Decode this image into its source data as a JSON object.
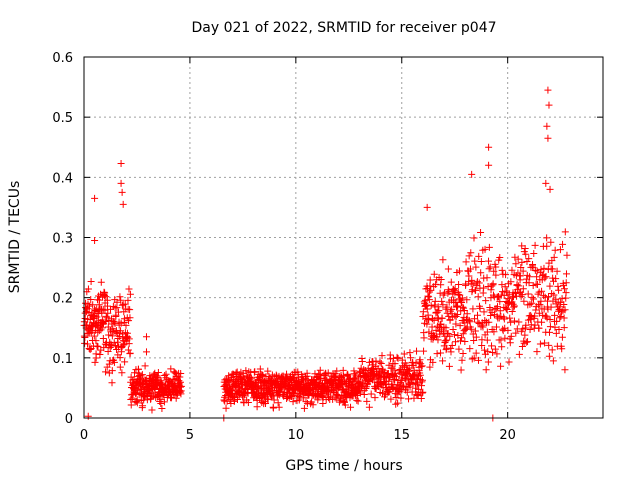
{
  "chart_data": {
    "type": "scatter",
    "title": "Day 021 of 2022, SRMTID for receiver p047",
    "xlabel": "GPS time / hours",
    "ylabel": "SRMTID / TECUs",
    "xlim": [
      0,
      24.5
    ],
    "ylim": [
      0,
      0.6
    ],
    "x_ticks": [
      0,
      5,
      10,
      15,
      20
    ],
    "x_tick_labels": [
      "0",
      "5",
      "10",
      "15",
      "20"
    ],
    "y_ticks": [
      0,
      0.1,
      0.2,
      0.3,
      0.4,
      0.5,
      0.6
    ],
    "y_tick_labels": [
      "0",
      "0.1",
      "0.2",
      "0.3",
      "0.4",
      "0.5",
      "0.6"
    ],
    "grid": true,
    "marker": "+",
    "colors": {
      "series": "#ff0000",
      "grid": "#a0a0a0",
      "axis": "#000000"
    },
    "series": [
      {
        "name": "SRMTID",
        "segments": [
          {
            "x_range": [
              0.0,
              1.0
            ],
            "y_range": [
              0.08,
              0.24
            ],
            "count": 110
          },
          {
            "x_range": [
              1.0,
              2.2
            ],
            "y_range": [
              0.05,
              0.24
            ],
            "count": 110
          },
          {
            "x_range": [
              2.2,
              4.6
            ],
            "y_range": [
              0.01,
              0.09
            ],
            "count": 260
          },
          {
            "x_range": [
              6.6,
              13.0
            ],
            "y_range": [
              0.01,
              0.09
            ],
            "count": 700
          },
          {
            "x_range": [
              13.0,
              16.0
            ],
            "y_range": [
              0.01,
              0.12
            ],
            "count": 260
          },
          {
            "x_range": [
              16.0,
              18.0
            ],
            "y_range": [
              0.06,
              0.28
            ],
            "count": 170
          },
          {
            "x_range": [
              18.0,
              22.8
            ],
            "y_range": [
              0.06,
              0.33
            ],
            "count": 360
          }
        ],
        "notable_points": [
          {
            "x": 0.2,
            "y": 0.003
          },
          {
            "x": 0.5,
            "y": 0.365
          },
          {
            "x": 0.5,
            "y": 0.295
          },
          {
            "x": 1.75,
            "y": 0.423
          },
          {
            "x": 1.75,
            "y": 0.39
          },
          {
            "x": 1.8,
            "y": 0.375
          },
          {
            "x": 1.85,
            "y": 0.355
          },
          {
            "x": 2.95,
            "y": 0.135
          },
          {
            "x": 2.95,
            "y": 0.11
          },
          {
            "x": 6.6,
            "y": 0.0
          },
          {
            "x": 16.2,
            "y": 0.35
          },
          {
            "x": 18.3,
            "y": 0.405
          },
          {
            "x": 19.1,
            "y": 0.45
          },
          {
            "x": 19.1,
            "y": 0.42
          },
          {
            "x": 19.3,
            "y": 0.0
          },
          {
            "x": 21.9,
            "y": 0.545
          },
          {
            "x": 21.95,
            "y": 0.52
          },
          {
            "x": 21.85,
            "y": 0.485
          },
          {
            "x": 21.9,
            "y": 0.465
          },
          {
            "x": 21.8,
            "y": 0.39
          },
          {
            "x": 22.0,
            "y": 0.38
          }
        ]
      }
    ]
  }
}
